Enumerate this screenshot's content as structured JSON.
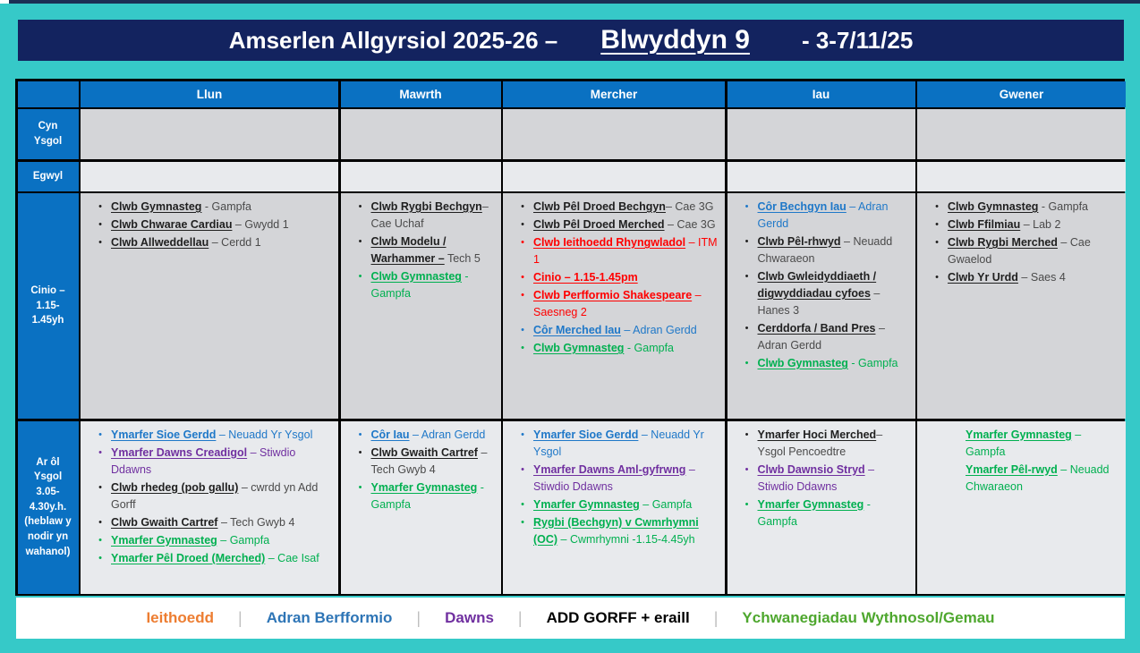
{
  "title": {
    "part1": "Amserlen Allgyrsiol 2025-26 –",
    "part2": "Blwyddyn 9",
    "part3": "- 3-7/11/25"
  },
  "palette": {
    "black": {
      "name": "#1F1F1F",
      "rest": "#4A4A4A"
    },
    "red": {
      "name": "#FF0000",
      "rest": "#FF0000"
    },
    "blue": {
      "name": "#1F78C8",
      "rest": "#1F78C8"
    },
    "green": {
      "name": "#00B050",
      "rest": "#00B050"
    },
    "purple": {
      "name": "#7030A0",
      "rest": "#7030A0"
    }
  },
  "theme_colors": {
    "background_teal": "#36C9C8",
    "title_navy": "#13235F",
    "header_blue": "#0A71C2",
    "row_shade_dark": "#D4D5D8",
    "row_shade_light": "#E8EAED",
    "grid_line": "#000000"
  },
  "days": [
    "Llun",
    "Mawrth",
    "Mercher",
    "Iau",
    "Gwener"
  ],
  "rows": [
    {
      "id": "cyn-ysgol",
      "label_lines": [
        "Cyn",
        "Ysgol"
      ],
      "shade": "dark",
      "cells": [
        {
          "bullets": true,
          "items": []
        },
        {
          "bullets": true,
          "items": []
        },
        {
          "bullets": true,
          "items": []
        },
        {
          "bullets": true,
          "items": []
        },
        {
          "bullets": true,
          "items": []
        }
      ]
    },
    {
      "id": "egwyl",
      "label_lines": [
        "Egwyl"
      ],
      "shade": "light",
      "cells": [
        {
          "bullets": true,
          "items": []
        },
        {
          "bullets": true,
          "items": []
        },
        {
          "bullets": true,
          "items": []
        },
        {
          "bullets": true,
          "items": []
        },
        {
          "bullets": true,
          "items": []
        }
      ]
    },
    {
      "id": "cinio",
      "label_lines": [
        "Cinio –",
        "1.15-",
        "1.45yh"
      ],
      "shade": "dark",
      "cells": [
        {
          "bullets": true,
          "items": [
            {
              "name": "Clwb Gymnasteg",
              "rest": " - Gampfa",
              "color": "black"
            },
            {
              "name": "Clwb Chwarae Cardiau",
              "rest": " – Gwydd 1",
              "color": "black"
            },
            {
              "name": "Clwb Allweddellau",
              "rest": " – Cerdd 1",
              "color": "black"
            }
          ]
        },
        {
          "bullets": true,
          "items": [
            {
              "name": "Clwb Rygbi Bechgyn",
              "rest": "– Cae Uchaf",
              "color": "black"
            },
            {
              "name": "Clwb Modelu / Warhammer –",
              "rest": " Tech 5",
              "color": "black"
            },
            {
              "name": "Clwb Gymnasteg",
              "rest": " - Gampfa",
              "color": "green"
            }
          ]
        },
        {
          "bullets": true,
          "items": [
            {
              "name": "Clwb Pêl Droed Bechgyn",
              "rest": "– Cae 3G",
              "color": "black"
            },
            {
              "name": "Clwb Pêl Droed Merched",
              "rest": " – Cae 3G",
              "color": "black"
            },
            {
              "name": "Clwb Ieithoedd Rhyngwladol",
              "rest": " – ITM 1",
              "color": "red"
            },
            {
              "name": "Cinio – 1.15-1.45pm",
              "rest": "",
              "color": "red"
            },
            {
              "name": "Clwb Perfformio Shakespeare",
              "rest": " – Saesneg 2",
              "color": "red"
            },
            {
              "name": "Côr Merched Iau",
              "rest": " – Adran Gerdd",
              "color": "blue"
            },
            {
              "name": "Clwb Gymnasteg",
              "rest": " - Gampfa",
              "color": "green"
            }
          ]
        },
        {
          "bullets": true,
          "items": [
            {
              "name": "Côr Bechgyn Iau",
              "rest": " – Adran Gerdd",
              "color": "blue"
            },
            {
              "name": "Clwb Pêl-rhwyd",
              "rest": " – Neuadd Chwaraeon",
              "color": "black"
            },
            {
              "name": "Clwb Gwleidyddiaeth / digwyddiadau cyfoes",
              "rest": " – Hanes 3",
              "color": "black"
            },
            {
              "name": "Cerddorfa / Band Pres",
              "rest": " – Adran Gerdd",
              "color": "black"
            },
            {
              "name": "Clwb Gymnasteg",
              "rest": " - Gampfa",
              "color": "green"
            }
          ]
        },
        {
          "bullets": true,
          "items": [
            {
              "name": "Clwb Gymnasteg",
              "rest": " - Gampfa",
              "color": "black"
            },
            {
              "name": "Clwb Ffilmiau",
              "rest": " – Lab 2",
              "color": "black"
            },
            {
              "name": "Clwb Rygbi Merched",
              "rest": " – Cae Gwaelod",
              "color": "black"
            },
            {
              "name": "Clwb Yr Urdd",
              "rest": " – Saes 4",
              "color": "black"
            }
          ]
        }
      ]
    },
    {
      "id": "ar-ol-ysgol",
      "label_lines": [
        "Ar ôl",
        "Ysgol",
        "3.05-",
        "4.30y.h.",
        "(heblaw y",
        "nodir yn",
        "wahanol)"
      ],
      "shade": "light",
      "cells": [
        {
          "bullets": true,
          "items": [
            {
              "name": "Ymarfer Sioe Gerdd",
              "rest": " – Neuadd Yr Ysgol",
              "color": "blue"
            },
            {
              "name": "Ymarfer Dawns Creadigol",
              "rest": " – Stiwdio Ddawns",
              "color": "purple"
            },
            {
              "name": "Clwb rhedeg (pob gallu)",
              "rest": " – cwrdd yn Add Gorff",
              "color": "black"
            },
            {
              "name": "Clwb Gwaith Cartref",
              "rest": " – Tech Gwyb 4",
              "color": "black"
            },
            {
              "name": "Ymarfer Gymnasteg",
              "rest": " – Gampfa",
              "color": "green"
            },
            {
              "name": "Ymarfer Pêl Droed (Merched)",
              "rest": " – Cae Isaf",
              "color": "green"
            }
          ]
        },
        {
          "bullets": true,
          "items": [
            {
              "name": "Côr Iau",
              "rest": " – Adran Gerdd",
              "color": "blue"
            },
            {
              "name": "Clwb Gwaith Cartref",
              "rest": " – Tech Gwyb 4",
              "color": "black"
            },
            {
              "name": "Ymarfer Gymnasteg",
              "rest": " - Gampfa",
              "color": "green"
            }
          ]
        },
        {
          "bullets": true,
          "items": [
            {
              "name": "Ymarfer Sioe Gerdd",
              "rest": " – Neuadd Yr Ysgol",
              "color": "blue"
            },
            {
              "name": "Ymarfer Dawns Aml-gyfrwng",
              "rest": " – Stiwdio Ddawns",
              "color": "purple"
            },
            {
              "name": "Ymarfer Gymnasteg",
              "rest": " – Gampfa",
              "color": "green"
            },
            {
              "name": "Rygbi (Bechgyn) v Cwmrhymni (OC)",
              "rest": " – Cwmrhymni  -1.15-4.45yh",
              "color": "green"
            }
          ]
        },
        {
          "bullets": true,
          "items": [
            {
              "name": "Ymarfer Hoci Merched",
              "rest": "– Ysgol Pencoedtre",
              "color": "black"
            },
            {
              "name": "Clwb Dawnsio Stryd",
              "rest": " – Stiwdio Ddawns",
              "color": "purple"
            },
            {
              "name": "Ymarfer Gymnasteg",
              "rest": " - Gampfa",
              "color": "green"
            }
          ]
        },
        {
          "bullets": false,
          "items": [
            {
              "name": "Ymarfer Gymnasteg",
              "rest": " – Gampfa",
              "color": "green"
            },
            {
              "name": "Ymarfer Pêl-rwyd",
              "rest": " – Neuadd Chwaraeon",
              "color": "green"
            }
          ]
        }
      ]
    }
  ],
  "legend": {
    "separator": "|",
    "items": [
      {
        "label": "Ieithoedd",
        "color": "#ED7D31"
      },
      {
        "label": "Adran Berfformio",
        "color": "#2E75B6"
      },
      {
        "label": "Dawns",
        "color": "#7030A0"
      },
      {
        "label": "ADD GORFF + eraill",
        "color": "#000000"
      },
      {
        "label": "Ychwanegiadau Wythnosol/Gemau",
        "color": "#4EA72E"
      }
    ]
  }
}
